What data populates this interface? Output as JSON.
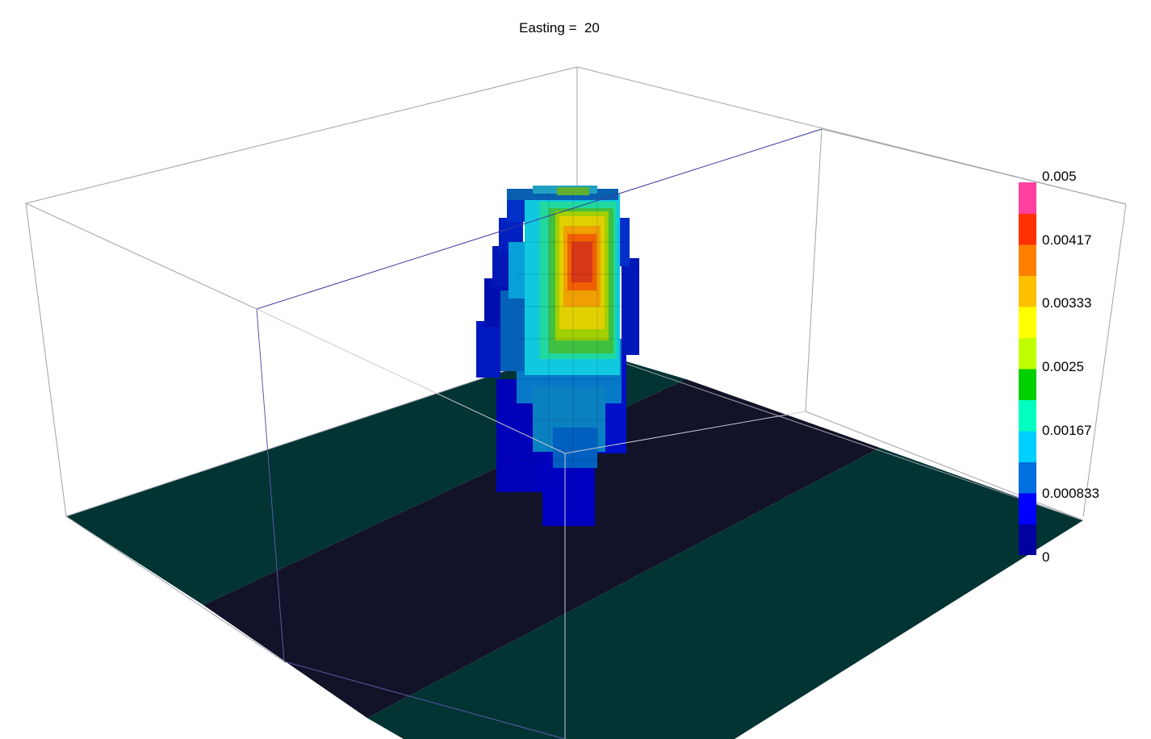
{
  "title": {
    "text": "Easting =  20"
  },
  "colorbar": {
    "min": 0,
    "max": 0.005,
    "labels": [
      "0.005",
      "0.00417",
      "0.00333",
      "0.0025",
      "0.00167",
      "0.000833",
      "0"
    ],
    "colors": [
      "#0000a0",
      "#0000ff",
      "#0070e0",
      "#00d0ff",
      "#00ffc0",
      "#00d000",
      "#c0ff00",
      "#ffff00",
      "#ffc000",
      "#ff8000",
      "#ff3000",
      "#ff40a0"
    ]
  },
  "floor": {
    "colors": {
      "teal_band": "#023434",
      "dark_band": "#121228"
    }
  },
  "box": {
    "frame_color": "#9a9aa8",
    "near_edge_color": "#3a3a9a"
  }
}
